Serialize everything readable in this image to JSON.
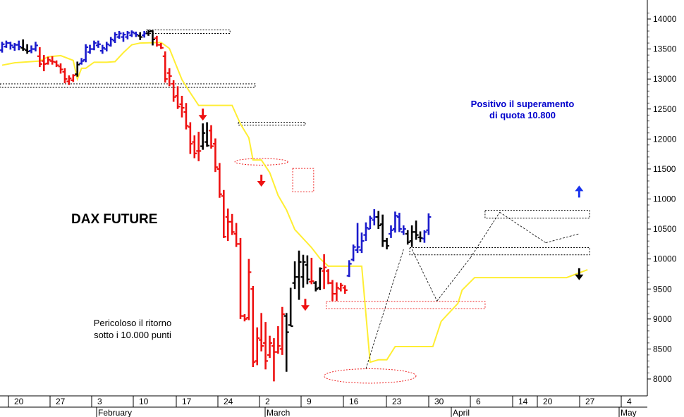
{
  "chart_data": {
    "type": "bar",
    "title": "DAX FUTURE",
    "y_range": [
      7950,
      14200
    ],
    "y_ticks": [
      "14000",
      "13500",
      "13000",
      "12500",
      "12000",
      "11500",
      "11000",
      "10500",
      "10000",
      "9500",
      "9000",
      "8500",
      "8000"
    ],
    "x_tick_labels": [
      "20",
      "27",
      "3",
      "10",
      "17",
      "24",
      "2",
      "9",
      "16",
      "23",
      "30",
      "6",
      "14",
      "20",
      "27",
      "4"
    ],
    "month_labels": [
      "February",
      "March",
      "April",
      "May"
    ],
    "annotations": {
      "positive": [
        "Positivo il superamento",
        "di quota 10.800"
      ],
      "danger": [
        "Pericoloso il ritorno",
        "sotto i 10.000 punti"
      ]
    },
    "colors": {
      "up": "#1a1acc",
      "down": "#ee1111",
      "neutral": "#000000",
      "trailing_stop": "#ffee33",
      "arrow_red": "#ee1111",
      "arrow_blue": "#1a33ee",
      "arrow_black": "#000000"
    },
    "bars": [
      {
        "h": 13620,
        "l": 13440,
        "o": 13480,
        "c": 13580,
        "col": "up"
      },
      {
        "h": 13640,
        "l": 13520,
        "o": 13540,
        "c": 13600,
        "col": "up"
      },
      {
        "h": 13620,
        "l": 13490,
        "o": 13600,
        "c": 13560,
        "col": "up"
      },
      {
        "h": 13600,
        "l": 13470,
        "o": 13530,
        "c": 13570,
        "col": "up"
      },
      {
        "h": 13640,
        "l": 13480,
        "o": 13570,
        "c": 13540,
        "col": "up"
      },
      {
        "h": 13660,
        "l": 13470,
        "o": 13520,
        "c": 13500,
        "col": "neutral"
      },
      {
        "h": 13580,
        "l": 13420,
        "o": 13480,
        "c": 13460,
        "col": "neutral"
      },
      {
        "h": 13560,
        "l": 13430,
        "o": 13470,
        "c": 13500,
        "col": "up"
      },
      {
        "h": 13620,
        "l": 13460,
        "o": 13500,
        "c": 13560,
        "col": "up"
      },
      {
        "h": 13530,
        "l": 13200,
        "o": 13380,
        "c": 13250,
        "col": "down"
      },
      {
        "h": 13400,
        "l": 13130,
        "o": 13300,
        "c": 13250,
        "col": "down"
      },
      {
        "h": 13370,
        "l": 13240,
        "o": 13260,
        "c": 13320,
        "col": "down"
      },
      {
        "h": 13380,
        "l": 13240,
        "o": 13300,
        "c": 13290,
        "col": "down"
      },
      {
        "h": 13310,
        "l": 13200,
        "o": 13280,
        "c": 13230,
        "col": "down"
      },
      {
        "h": 13260,
        "l": 13090,
        "o": 13210,
        "c": 13160,
        "col": "down"
      },
      {
        "h": 13180,
        "l": 12930,
        "o": 13120,
        "c": 13000,
        "col": "down"
      },
      {
        "h": 13060,
        "l": 12900,
        "o": 12960,
        "c": 13010,
        "col": "down"
      },
      {
        "h": 13080,
        "l": 12950,
        "o": 12980,
        "c": 13060,
        "col": "down"
      },
      {
        "h": 13290,
        "l": 13040,
        "o": 13080,
        "c": 13240,
        "col": "neutral"
      },
      {
        "h": 13350,
        "l": 13240,
        "o": 13260,
        "c": 13300,
        "col": "up"
      },
      {
        "h": 13580,
        "l": 13280,
        "o": 13320,
        "c": 13530,
        "col": "up"
      },
      {
        "h": 13570,
        "l": 13420,
        "o": 13450,
        "c": 13500,
        "col": "up"
      },
      {
        "h": 13640,
        "l": 13480,
        "o": 13500,
        "c": 13600,
        "col": "up"
      },
      {
        "h": 13640,
        "l": 13520,
        "o": 13560,
        "c": 13580,
        "col": "up"
      },
      {
        "h": 13570,
        "l": 13420,
        "o": 13470,
        "c": 13520,
        "col": "up"
      },
      {
        "h": 13620,
        "l": 13460,
        "o": 13500,
        "c": 13580,
        "col": "up"
      },
      {
        "h": 13700,
        "l": 13540,
        "o": 13560,
        "c": 13660,
        "col": "up"
      },
      {
        "h": 13780,
        "l": 13600,
        "o": 13640,
        "c": 13740,
        "col": "up"
      },
      {
        "h": 13800,
        "l": 13670,
        "o": 13700,
        "c": 13760,
        "col": "up"
      },
      {
        "h": 13780,
        "l": 13620,
        "o": 13700,
        "c": 13740,
        "col": "up"
      },
      {
        "h": 13800,
        "l": 13660,
        "o": 13700,
        "c": 13770,
        "col": "up"
      },
      {
        "h": 13810,
        "l": 13700,
        "o": 13730,
        "c": 13780,
        "col": "up"
      },
      {
        "h": 13790,
        "l": 13700,
        "o": 13760,
        "c": 13740,
        "col": "up"
      },
      {
        "h": 13780,
        "l": 13650,
        "o": 13720,
        "c": 13700,
        "col": "neutral"
      },
      {
        "h": 13800,
        "l": 13690,
        "o": 13730,
        "c": 13760,
        "col": "up"
      },
      {
        "h": 13820,
        "l": 13720,
        "o": 13760,
        "c": 13790,
        "col": "neutral"
      },
      {
        "h": 13810,
        "l": 13560,
        "o": 13800,
        "c": 13660,
        "col": "neutral"
      },
      {
        "h": 13720,
        "l": 13540,
        "o": 13680,
        "c": 13570,
        "col": "down"
      },
      {
        "h": 13600,
        "l": 13500,
        "o": 13570,
        "c": 13520,
        "col": "down"
      },
      {
        "h": 13460,
        "l": 12940,
        "o": 13380,
        "c": 13000,
        "col": "down"
      },
      {
        "h": 13180,
        "l": 12880,
        "o": 13100,
        "c": 13050,
        "col": "down"
      },
      {
        "h": 12980,
        "l": 12620,
        "o": 12920,
        "c": 12700,
        "col": "down"
      },
      {
        "h": 12880,
        "l": 12500,
        "o": 12720,
        "c": 12540,
        "col": "down"
      },
      {
        "h": 12720,
        "l": 12360,
        "o": 12580,
        "c": 12520,
        "col": "down"
      },
      {
        "h": 12600,
        "l": 12160,
        "o": 12450,
        "c": 12220,
        "col": "down"
      },
      {
        "h": 12280,
        "l": 11750,
        "o": 12200,
        "c": 11920,
        "col": "down"
      },
      {
        "h": 12060,
        "l": 11680,
        "o": 11950,
        "c": 11760,
        "col": "down"
      },
      {
        "h": 12120,
        "l": 11630,
        "o": 11800,
        "c": 11800,
        "col": "down"
      },
      {
        "h": 12260,
        "l": 11820,
        "o": 11880,
        "c": 12100,
        "col": "neutral"
      },
      {
        "h": 12280,
        "l": 11870,
        "o": 11950,
        "c": 11890,
        "col": "neutral"
      },
      {
        "h": 12230,
        "l": 11840,
        "o": 12140,
        "c": 11880,
        "col": "down"
      },
      {
        "h": 12010,
        "l": 11450,
        "o": 11920,
        "c": 11530,
        "col": "down"
      },
      {
        "h": 11600,
        "l": 11020,
        "o": 11500,
        "c": 11080,
        "col": "down"
      },
      {
        "h": 11150,
        "l": 10350,
        "o": 11050,
        "c": 10370,
        "col": "down"
      },
      {
        "h": 10840,
        "l": 10300,
        "o": 10700,
        "c": 10620,
        "col": "down"
      },
      {
        "h": 10750,
        "l": 10400,
        "o": 10620,
        "c": 10450,
        "col": "down"
      },
      {
        "h": 10600,
        "l": 10200,
        "o": 10420,
        "c": 10250,
        "col": "down"
      },
      {
        "h": 10350,
        "l": 9000,
        "o": 10250,
        "c": 9050,
        "col": "down"
      },
      {
        "h": 9080,
        "l": 8960,
        "o": 9050,
        "c": 9000,
        "col": "down"
      },
      {
        "h": 10000,
        "l": 8980,
        "o": 9020,
        "c": 9780,
        "col": "down"
      },
      {
        "h": 9550,
        "l": 8200,
        "o": 9500,
        "c": 8280,
        "col": "down"
      },
      {
        "h": 8860,
        "l": 8230,
        "o": 8300,
        "c": 8680,
        "col": "down"
      },
      {
        "h": 9100,
        "l": 8460,
        "o": 8650,
        "c": 8550,
        "col": "down"
      },
      {
        "h": 8950,
        "l": 8160,
        "o": 8600,
        "c": 8300,
        "col": "down"
      },
      {
        "h": 8720,
        "l": 8350,
        "o": 8400,
        "c": 8600,
        "col": "down"
      },
      {
        "h": 8680,
        "l": 7960,
        "o": 8550,
        "c": 8450,
        "col": "down"
      },
      {
        "h": 8880,
        "l": 8420,
        "o": 8450,
        "c": 8550,
        "col": "down"
      },
      {
        "h": 9200,
        "l": 8400,
        "o": 8500,
        "c": 9080,
        "col": "down"
      },
      {
        "h": 9100,
        "l": 8120,
        "o": 9050,
        "c": 8780,
        "col": "neutral"
      },
      {
        "h": 9520,
        "l": 8880,
        "o": 8900,
        "c": 8880,
        "col": "neutral"
      },
      {
        "h": 9960,
        "l": 9500,
        "o": 9600,
        "c": 9700,
        "col": "neutral"
      },
      {
        "h": 10140,
        "l": 9320,
        "o": 9700,
        "c": 9950,
        "col": "neutral"
      },
      {
        "h": 10070,
        "l": 9520,
        "o": 9700,
        "c": 9950,
        "col": "neutral"
      },
      {
        "h": 10060,
        "l": 9580,
        "o": 9900,
        "c": 9660,
        "col": "neutral"
      },
      {
        "h": 10020,
        "l": 9580,
        "o": 9620,
        "c": 9630,
        "col": "down"
      },
      {
        "h": 9630,
        "l": 9460,
        "o": 9600,
        "c": 9500,
        "col": "neutral"
      },
      {
        "h": 9860,
        "l": 9480,
        "o": 9520,
        "c": 9840,
        "col": "neutral"
      },
      {
        "h": 10080,
        "l": 9500,
        "o": 9800,
        "c": 9860,
        "col": "down"
      },
      {
        "h": 9830,
        "l": 9580,
        "o": 9800,
        "c": 9600,
        "col": "down"
      },
      {
        "h": 9650,
        "l": 9300,
        "o": 9600,
        "c": 9420,
        "col": "down"
      },
      {
        "h": 9610,
        "l": 9300,
        "o": 9420,
        "c": 9520,
        "col": "down"
      },
      {
        "h": 9600,
        "l": 9460,
        "o": 9500,
        "c": 9560,
        "col": "down"
      },
      {
        "h": 9560,
        "l": 9420,
        "o": 9520,
        "c": 9480,
        "col": "down"
      },
      {
        "h": 9980,
        "l": 9700,
        "o": 9720,
        "c": 9920,
        "col": "up"
      },
      {
        "h": 10240,
        "l": 9960,
        "o": 9990,
        "c": 10200,
        "col": "up"
      },
      {
        "h": 10600,
        "l": 10100,
        "o": 10150,
        "c": 10200,
        "col": "up"
      },
      {
        "h": 10440,
        "l": 10100,
        "o": 10150,
        "c": 10300,
        "col": "up"
      },
      {
        "h": 10610,
        "l": 10300,
        "o": 10400,
        "c": 10520,
        "col": "up"
      },
      {
        "h": 10720,
        "l": 10500,
        "o": 10500,
        "c": 10680,
        "col": "up"
      },
      {
        "h": 10830,
        "l": 10560,
        "o": 10650,
        "c": 10700,
        "col": "up"
      },
      {
        "h": 10800,
        "l": 10500,
        "o": 10700,
        "c": 10560,
        "col": "neutral"
      },
      {
        "h": 10740,
        "l": 10200,
        "o": 10580,
        "c": 10300,
        "col": "neutral"
      },
      {
        "h": 10350,
        "l": 10160,
        "o": 10300,
        "c": 10220,
        "col": "neutral"
      },
      {
        "h": 10560,
        "l": 10350,
        "o": 10420,
        "c": 10480,
        "col": "up"
      },
      {
        "h": 10790,
        "l": 10440,
        "o": 10500,
        "c": 10720,
        "col": "up"
      },
      {
        "h": 10770,
        "l": 10450,
        "o": 10700,
        "c": 10500,
        "col": "up"
      },
      {
        "h": 10560,
        "l": 10400,
        "o": 10450,
        "c": 10500,
        "col": "up"
      },
      {
        "h": 10480,
        "l": 10240,
        "o": 10420,
        "c": 10280,
        "col": "neutral"
      },
      {
        "h": 10560,
        "l": 10200,
        "o": 10300,
        "c": 10450,
        "col": "neutral"
      },
      {
        "h": 10640,
        "l": 10320,
        "o": 10450,
        "c": 10400,
        "col": "neutral"
      },
      {
        "h": 10460,
        "l": 10280,
        "o": 10360,
        "c": 10350,
        "col": "neutral"
      },
      {
        "h": 10480,
        "l": 10270,
        "o": 10340,
        "c": 10450,
        "col": "up"
      },
      {
        "h": 10760,
        "l": 10400,
        "o": 10480,
        "c": 10700,
        "col": "up"
      }
    ],
    "trailing_stop": [
      [
        0,
        13230
      ],
      [
        3,
        13270
      ],
      [
        9,
        13300
      ],
      [
        11,
        13370
      ],
      [
        14,
        13390
      ],
      [
        17,
        13310
      ],
      [
        18,
        13000
      ],
      [
        19,
        13180
      ],
      [
        20,
        13180
      ],
      [
        22,
        13280
      ],
      [
        25,
        13280
      ],
      [
        27,
        13290
      ],
      [
        29,
        13440
      ],
      [
        31,
        13570
      ],
      [
        33,
        13600
      ],
      [
        38,
        13610
      ],
      [
        40,
        13510
      ],
      [
        43,
        12990
      ],
      [
        45,
        12770
      ],
      [
        47,
        12560
      ],
      [
        55,
        12560
      ],
      [
        57,
        12250
      ],
      [
        59,
        12020
      ],
      [
        60,
        11650
      ],
      [
        62,
        11650
      ],
      [
        64,
        11440
      ],
      [
        66,
        11060
      ],
      [
        68,
        10820
      ],
      [
        70,
        10490
      ],
      [
        74,
        10190
      ],
      [
        76,
        10010
      ],
      [
        78,
        9880
      ],
      [
        80,
        9880
      ],
      [
        86,
        9880
      ],
      [
        88,
        8280
      ],
      [
        90,
        8320
      ],
      [
        92,
        8320
      ],
      [
        94,
        8540
      ],
      [
        103,
        8540
      ],
      [
        105,
        8960
      ],
      [
        109,
        9260
      ],
      [
        110,
        9480
      ],
      [
        113,
        9690
      ],
      [
        135,
        9690
      ],
      [
        140,
        9820
      ]
    ],
    "reference_boxes": [
      {
        "from": 35,
        "to": 54,
        "low": 13760,
        "high": 13820
      },
      {
        "from": 0,
        "to": 60,
        "low": 12860,
        "high": 12920
      },
      {
        "from": 57,
        "to": 72,
        "low": 12230,
        "high": 12280
      },
      {
        "from": 70,
        "to": 74,
        "low": 11120,
        "high": 11510
      },
      {
        "from": 78,
        "to": 115,
        "low": 9170,
        "high": 9290
      },
      {
        "from": 98,
        "to": 140,
        "low": 10070,
        "high": 10190
      },
      {
        "from": 116,
        "to": 140,
        "low": 10680,
        "high": 10810
      }
    ],
    "ellipses": [
      {
        "x": 62,
        "y": 11620,
        "rx": 7.5,
        "ry": 55
      },
      {
        "x": 88,
        "y": 8050,
        "rx": 15,
        "ry": 120
      }
    ],
    "signal_arrows": [
      {
        "x": 48,
        "y": 12400,
        "dir": "down",
        "color": "arrow_red"
      },
      {
        "x": 62,
        "y": 11300,
        "dir": "down",
        "color": "arrow_red"
      },
      {
        "x": 72.5,
        "y": 9230,
        "dir": "down",
        "color": "arrow_red"
      },
      {
        "x": 138,
        "y": 11130,
        "dir": "up",
        "color": "arrow_blue"
      },
      {
        "x": 138,
        "y": 9740,
        "dir": "down",
        "color": "arrow_black"
      }
    ],
    "trend_lines": [
      [
        [
          87,
          8170
        ],
        [
          96,
          10160
        ]
      ],
      [
        [
          98,
          10160
        ],
        [
          104,
          9300
        ]
      ],
      [
        [
          104,
          9300
        ],
        [
          112,
          10020
        ]
      ],
      [
        [
          112,
          10020
        ],
        [
          119,
          10780
        ]
      ],
      [
        [
          119,
          10780
        ],
        [
          130,
          10270
        ]
      ],
      [
        [
          130,
          10270
        ],
        [
          138,
          10420
        ]
      ]
    ]
  }
}
